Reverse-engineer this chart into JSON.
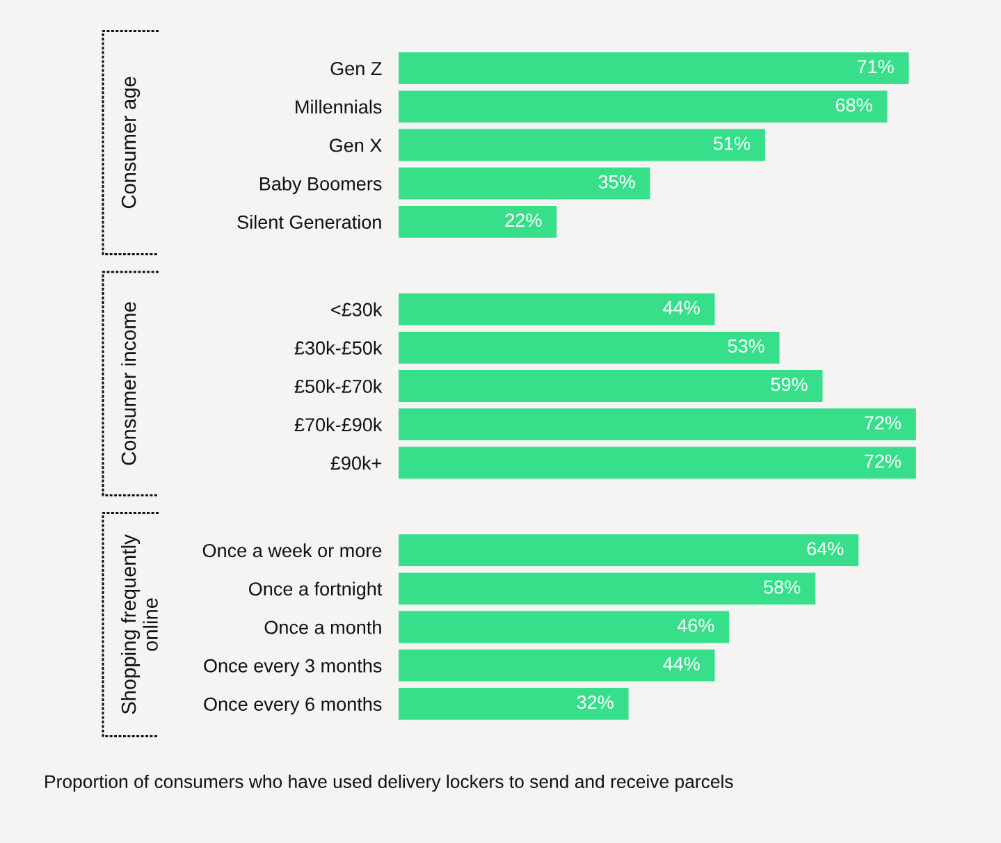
{
  "chart_data": [
    {
      "type": "bar",
      "orientation": "horizontal",
      "ylabel": "Consumer age",
      "categories": [
        "Gen Z",
        "Millennials",
        "Gen X",
        "Baby Boomers",
        "Silent Generation"
      ],
      "values": [
        71,
        68,
        51,
        35,
        22
      ],
      "value_labels": [
        "71%",
        "68%",
        "51%",
        "35%",
        "22%"
      ],
      "color": "#37df8b",
      "tick_labels": "y"
    },
    {
      "type": "bar",
      "orientation": "horizontal",
      "ylabel": "Consumer income",
      "categories": [
        "<£30k",
        "£30k-£50k",
        "£50k-£70k",
        "£70k-£90k",
        "£90k+"
      ],
      "values": [
        44,
        53,
        59,
        72,
        72
      ],
      "value_labels": [
        "44%",
        "53%",
        "59%",
        "72%",
        "72%"
      ],
      "color": "#37df8b",
      "tick_labels": "y"
    },
    {
      "type": "bar",
      "orientation": "horizontal",
      "ylabel": "Shopping frequently\nonline",
      "categories": [
        "Once a week or more",
        "Once a fortnight",
        "Once a month",
        "Once every 3 months",
        "Once every 6 months"
      ],
      "values": [
        64,
        58,
        46,
        44,
        32
      ],
      "value_labels": [
        "64%",
        "58%",
        "46%",
        "44%",
        "32%"
      ],
      "color": "#37df8b",
      "tick_labels": "y",
      "title": "Proportion of consumers who have used delivery lockers to send and receive parcels"
    }
  ]
}
